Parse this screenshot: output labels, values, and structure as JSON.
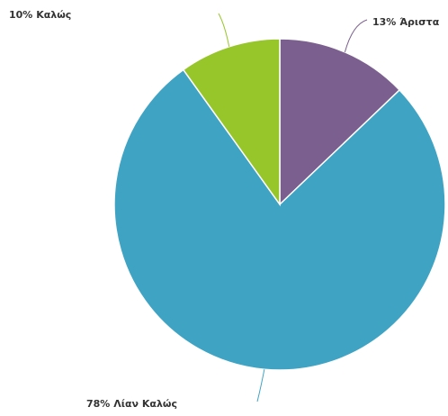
{
  "chart_data": {
    "type": "pie",
    "categories": [
      "Άριστα",
      "Λίαν Καλώς",
      "Καλώς"
    ],
    "values": [
      13,
      78,
      10
    ],
    "value_labels": [
      "13%",
      "78%",
      "10%"
    ],
    "colors": [
      "#7b5f8f",
      "#3fa3c4",
      "#97c62a"
    ]
  }
}
